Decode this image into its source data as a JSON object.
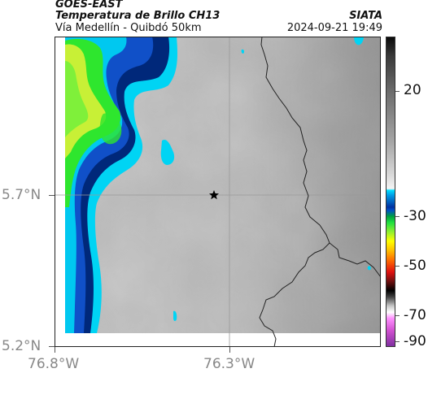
{
  "header": {
    "satellite": "GOES-EAST",
    "product": "Temperatura de Brillo CH13",
    "region": "Vía Medellín - Quibdó 50km",
    "agency": "SIATA",
    "timestamp": "2024-09-21 19:49"
  },
  "axes": {
    "y_ticks": [
      {
        "label": "5.7°N",
        "value": 5.7
      },
      {
        "label": "5.2°N",
        "value": 5.2
      }
    ],
    "x_ticks": [
      {
        "label": "76.8°W",
        "value": -76.8
      },
      {
        "label": "76.3°W",
        "value": -76.3
      }
    ]
  },
  "colorbar": {
    "ticks": [
      {
        "label": "20",
        "value": 20
      },
      {
        "label": "-30",
        "value": -30
      },
      {
        "label": "-50",
        "value": -50
      },
      {
        "label": "-70",
        "value": -70
      },
      {
        "label": "-90",
        "value": -90
      }
    ],
    "colors": [
      "#000000",
      "#444444",
      "#9a9a9a",
      "#d8d8d8",
      "#f0f0f0",
      "#00d8ff",
      "#0033aa",
      "#00ff55",
      "#ffff00",
      "#ff9900",
      "#cc0000",
      "#111111",
      "#cccccc",
      "#ff88ff",
      "#aa33aa"
    ]
  },
  "map": {
    "marker_icon": "star-icon",
    "cloud_colors": {
      "cyan": "#00d4f4",
      "deep_blue": "#00287a",
      "blue": "#1050c8",
      "green": "#2ee62e",
      "yellow_green": "#c8f036",
      "bright_green": "#7ff03a"
    },
    "gray_base": "#d2d2d2"
  }
}
